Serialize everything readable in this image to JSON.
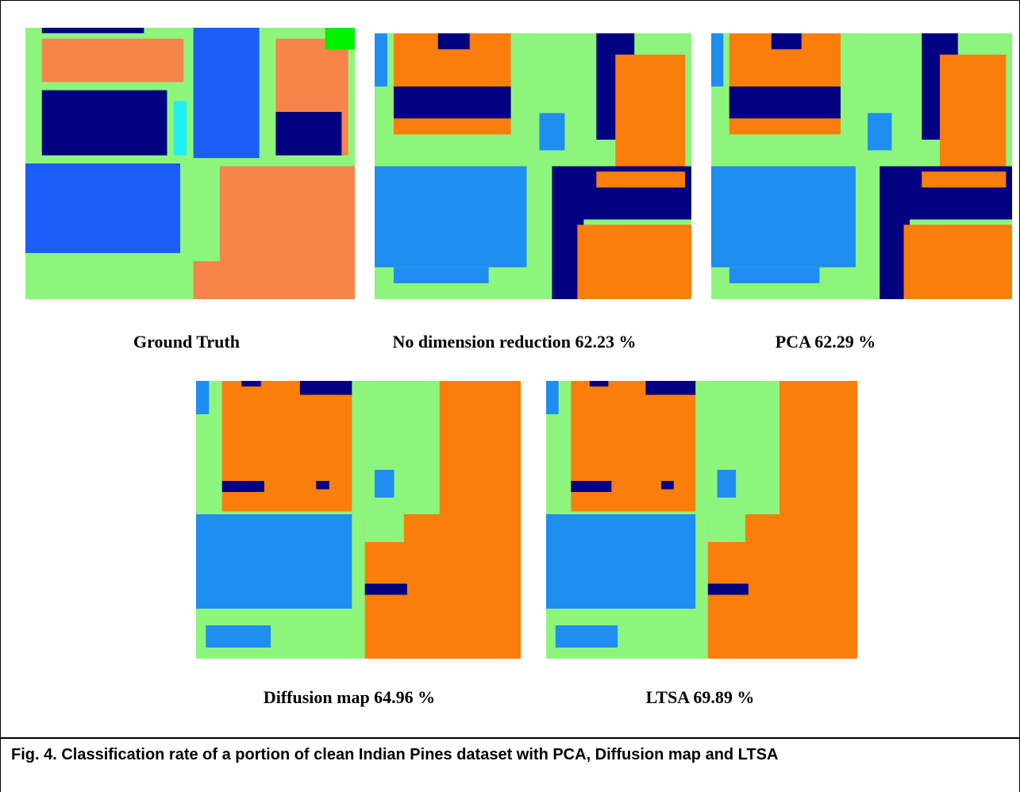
{
  "figure": {
    "panels": [
      {
        "caption": "Ground Truth"
      },
      {
        "caption": "No dimension reduction 62.23 %"
      },
      {
        "caption": "PCA 62.29 %"
      },
      {
        "caption": "Diffusion map 64.96 %"
      },
      {
        "caption": "LTSA 69.89 %"
      }
    ],
    "caption": "Fig. 4. Classification rate of a portion of clean Indian Pines dataset with PCA, Diffusion map and LTSA"
  }
}
